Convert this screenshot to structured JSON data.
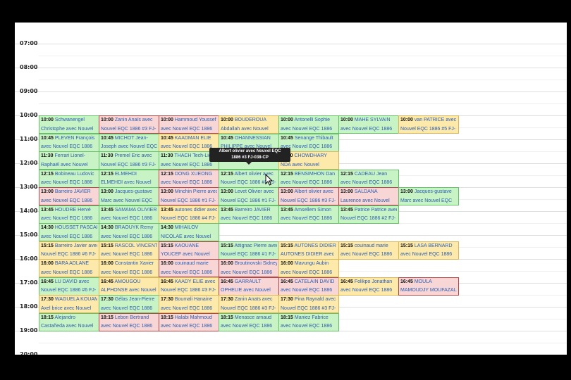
{
  "times": [
    "07:00",
    "08:00",
    "09:00",
    "10:00",
    "11:00",
    "12:00",
    "13:00",
    "14:00",
    "15:00",
    "16:00",
    "17:00",
    "18:00",
    "19:00",
    "20:00"
  ],
  "columns": [
    [
      {
        "time": "10:00",
        "title": "Schwanengel",
        "sub": "Christophe avec Nouvel",
        "color": "g"
      },
      {
        "time": "10:45",
        "title": "PLEVEN François",
        "sub": "avec Nouvel EQC 1886",
        "color": "g"
      },
      {
        "time": "11:30",
        "title": "Ferrari Lionel-",
        "sub": "Raphaël avec Nouvel",
        "color": "g"
      },
      {
        "time": "12:15",
        "title": "Bobineau Ludovic",
        "sub": "avec Nouvel EQC 1886",
        "color": "g"
      },
      {
        "time": "13:00",
        "title": "Barreiro JAVIER",
        "sub": "avec Nouvel EQC 1886",
        "color": "r"
      },
      {
        "time": "13:45",
        "title": "HOUDRE Hervé",
        "sub": "avec Nouvel EQC 1886",
        "color": "g"
      },
      {
        "time": "14:30",
        "title": "HOUSSET PASCAL",
        "sub": "avec Nouvel EQC 1886",
        "color": "g"
      },
      {
        "time": "15:15",
        "title": "Barreiro Javier avec",
        "sub": "Nouvel EQC 1886 #6 FJ-",
        "color": "y"
      },
      {
        "time": "16:00",
        "title": "BARA ADLANE",
        "sub": "avec Nouvel EQC 1886",
        "color": "y"
      },
      {
        "time": "16:45",
        "title": "LU DAVID avec",
        "sub": "Nouvel EQC 1886 #6 FJ-",
        "color": "g"
      },
      {
        "time": "17:30",
        "title": "WAGUELA KOUAM",
        "sub": "Axel brice avec Nouvel",
        "color": "y"
      },
      {
        "time": "18:15",
        "title": "Alejandro",
        "sub": "Castañeda avec Nouvel",
        "color": "g"
      }
    ],
    [
      {
        "time": "10:00",
        "title": "Zanin Anaïs avec",
        "sub": "Nouvel EQC 1886 #3 FJ-",
        "color": "r"
      },
      {
        "time": "10:45",
        "title": "MICHOT Jean-",
        "sub": "Joseph avec Nouvel EQC",
        "color": "g"
      },
      {
        "time": "11:30",
        "title": "Premel Eric avec",
        "sub": "Nouvel EQC 1886 #3 FJ-",
        "color": "g"
      },
      {
        "time": "12:15",
        "title": "ELMEHDI",
        "sub": "ELMEHDI avec Nouvel",
        "color": "g"
      },
      {
        "time": "13:00",
        "title": "Jacques-gustave",
        "sub": "Marc avec Nouvel EQC",
        "color": "g"
      },
      {
        "time": "13:45",
        "title": "SAMAMA OLIVIER",
        "sub": "avec Nouvel EQC 1886",
        "color": "g"
      },
      {
        "time": "14:30",
        "title": "BRAOUYK Remy",
        "sub": "avec Nouvel EQC 1886",
        "color": "g"
      },
      {
        "time": "15:15",
        "title": "RASCOL VINCENT",
        "sub": "avec Nouvel EQC 1886",
        "color": "y"
      },
      {
        "time": "16:00",
        "title": "Constantin Xavier",
        "sub": "avec Nouvel EQC 1886",
        "color": "y"
      },
      {
        "time": "16:45",
        "title": "AMOUGOU",
        "sub": "ALPHONSE avec Nouvel",
        "color": "y"
      },
      {
        "time": "17:30",
        "title": "Gélas Jean-Pierre",
        "sub": "avec Nouvel EQC 1886",
        "color": "g"
      },
      {
        "time": "18:15",
        "title": "Lebon Bertrand",
        "sub": "avec Nouvel EQC 1886",
        "color": "r"
      }
    ],
    [
      {
        "time": "10:00",
        "title": "Hammoud Youssef",
        "sub": "avec Nouvel EQC 1886",
        "color": "r"
      },
      {
        "time": "10:45",
        "title": "KAADMAN ELIE",
        "sub": "avec Nouvel EQC 1886",
        "color": "y"
      },
      {
        "time": "11:30",
        "title": "THACH Tech-Lie",
        "sub": "avec Nouvel EQC 1886",
        "color": "g"
      },
      {
        "time": "12:15",
        "title": "DONG XUEONG",
        "sub": "avec Nouvel EQC 1886",
        "color": "r"
      },
      {
        "time": "13:00",
        "title": "Minchin Pierre avec",
        "sub": "Nouvel EQC 1886 #1 FJ-",
        "color": "r"
      },
      {
        "time": "13:45",
        "title": "autones didier avec",
        "sub": "Nouvel EQC 1886 #4 FJ-",
        "color": "y"
      },
      {
        "time": "14:30",
        "title": "MIHAILOV",
        "sub": "NICOLAE avec Nouvel",
        "color": "g"
      },
      {
        "time": "15:15",
        "title": "KAOUANE",
        "sub": "YOUCEF avec Nouvel",
        "color": "r"
      },
      {
        "time": "16:00",
        "title": "couinaud marie",
        "sub": "avec Nouvel EQC 1886",
        "color": "r"
      },
      {
        "time": "16:45",
        "title": "KAADY ELIE avec",
        "sub": "Nouvel EQC 1886 #3 FJ-",
        "color": "y"
      },
      {
        "time": "17:30",
        "title": "Boumali Hanaine",
        "sub": "avec Nouvel EQC 1886",
        "color": "y"
      },
      {
        "time": "18:15",
        "title": "Halabi Mahmoud",
        "sub": "avec Nouvel EQC 1886",
        "color": "r"
      }
    ],
    [
      {
        "time": "10:00",
        "title": "BOUDEROUA",
        "sub": "Abdallah avec Nouvel",
        "color": "y"
      },
      {
        "time": "10:45",
        "title": "OHANNESSIAN",
        "sub": "PHILIPPE avec Nouvel",
        "color": "g"
      },
      {
        "time": "11:30",
        "title": "",
        "sub": "",
        "color": "g"
      },
      {
        "time": "12:15",
        "title": "Albert olivier avec",
        "sub": "Nouvel EQC 1886 #3 FJ-",
        "color": "g"
      },
      {
        "time": "13:00",
        "title": "Levet Olivier avec",
        "sub": "Nouvel EQC 1886 #1 FJ-",
        "color": "g"
      },
      {
        "time": "13:45",
        "title": "Barreiro JAVIER",
        "sub": "avec Nouvel EQC 1886",
        "color": "g"
      },
      null,
      {
        "time": "15:15",
        "title": "Attignac Pierre avec",
        "sub": "Nouvel EQC 1886 #1 FJ-",
        "color": "g"
      },
      {
        "time": "16:00",
        "title": "Broutinovski Sidney",
        "sub": "avec Nouvel EQC 1886",
        "color": "r"
      },
      {
        "time": "16:45",
        "title": "GARRAULT",
        "sub": "OPHELIE avec Nouvel",
        "color": "r"
      },
      {
        "time": "17:30",
        "title": "Zanin Anaïs avec",
        "sub": "Nouvel EQC 1886 #3 FJ-",
        "color": "y"
      },
      {
        "time": "18:15",
        "title": "Menasce arnaud",
        "sub": "avec Nouvel EQC 1886",
        "color": "g"
      }
    ],
    [
      {
        "time": "10:00",
        "title": "Antonelli Sophie",
        "sub": "avec Nouvel EQC 1886",
        "color": "g"
      },
      {
        "time": "10:45",
        "title": "Senange Thibault",
        "sub": "avec Nouvel EQC 1886",
        "color": "g"
      },
      {
        "time": "11:30",
        "title": "CHOWDHARY",
        "sub": "NDA avec Nouvel",
        "color": "y"
      },
      {
        "time": "12:15",
        "title": "BENSIMHON Dan",
        "sub": "avec Nouvel EQC 1886",
        "color": "g"
      },
      {
        "time": "13:00",
        "title": "Albert olivier avec",
        "sub": "Nouvel EQC 1886 #3 FJ-",
        "color": "r"
      },
      {
        "time": "13:45",
        "title": "Amsellem Simon",
        "sub": "avec Nouvel EQC 1886",
        "color": "g"
      },
      null,
      {
        "time": "15:15",
        "title": "AUTONES DIDIER",
        "sub": "AUTONES DIDIER avec",
        "color": "y"
      },
      {
        "time": "16:00",
        "title": "Mavungu Aubin",
        "sub": "avec Nouvel EQC 1886",
        "color": "y"
      },
      {
        "time": "16:45",
        "title": "CATELAIN DAVID",
        "sub": "avec Nouvel EQC 1886",
        "color": "r"
      },
      {
        "time": "17:30",
        "title": "Pina Raynald avec",
        "sub": "Nouvel EQC 1886 #3 FJ-",
        "color": "y"
      },
      {
        "time": "18:15",
        "title": "Maniez Fabrice",
        "sub": "avec Nouvel EQC 1886",
        "color": "g"
      }
    ],
    [
      {
        "time": "10:00",
        "title": "MAHE SYLVAIN",
        "sub": "avec Nouvel EQC 1886",
        "color": "g"
      },
      null,
      null,
      {
        "time": "12:15",
        "title": "CADEAU Jean",
        "sub": "avec Nouvel EQC 1886",
        "color": "g"
      },
      {
        "time": "13:00",
        "title": "SALDANA",
        "sub": "Laurence avec Nouvel",
        "color": "r"
      },
      {
        "time": "13:45",
        "title": "Patrice Patrice avec",
        "sub": "Nouvel EQC 1886 #2 FJ-",
        "color": "g"
      },
      null,
      {
        "time": "15:15",
        "title": "couinaud marie",
        "sub": "avec Nouvel EQC 1886",
        "color": "y"
      },
      null,
      {
        "time": "16:45",
        "title": "Folikpo Jonathan",
        "sub": "avec Nouvel EQC 1886",
        "color": "y"
      },
      null,
      null
    ],
    [
      {
        "time": "10:00",
        "title": "van PATRICE avec",
        "sub": "Nouvel EQC 1886 #5 FJ-",
        "color": "y"
      },
      null,
      null,
      null,
      {
        "time": "13:00",
        "title": "Jacques-gustave",
        "sub": "Marc avec Nouvel EQC",
        "color": "g"
      },
      null,
      null,
      {
        "time": "15:15",
        "title": "LASA BERNARD",
        "sub": "avec Nouvel EQC 1886",
        "color": "y"
      },
      null,
      {
        "time": "16:45",
        "title": "MOULA",
        "sub": "MAMOUDJY MOUFAZAL",
        "color": "r"
      },
      null,
      null
    ]
  ],
  "tooltip": {
    "line1": "Albert olivier avec Nouvel EQC",
    "line2": "1886 #3 FJ-038-CP"
  }
}
